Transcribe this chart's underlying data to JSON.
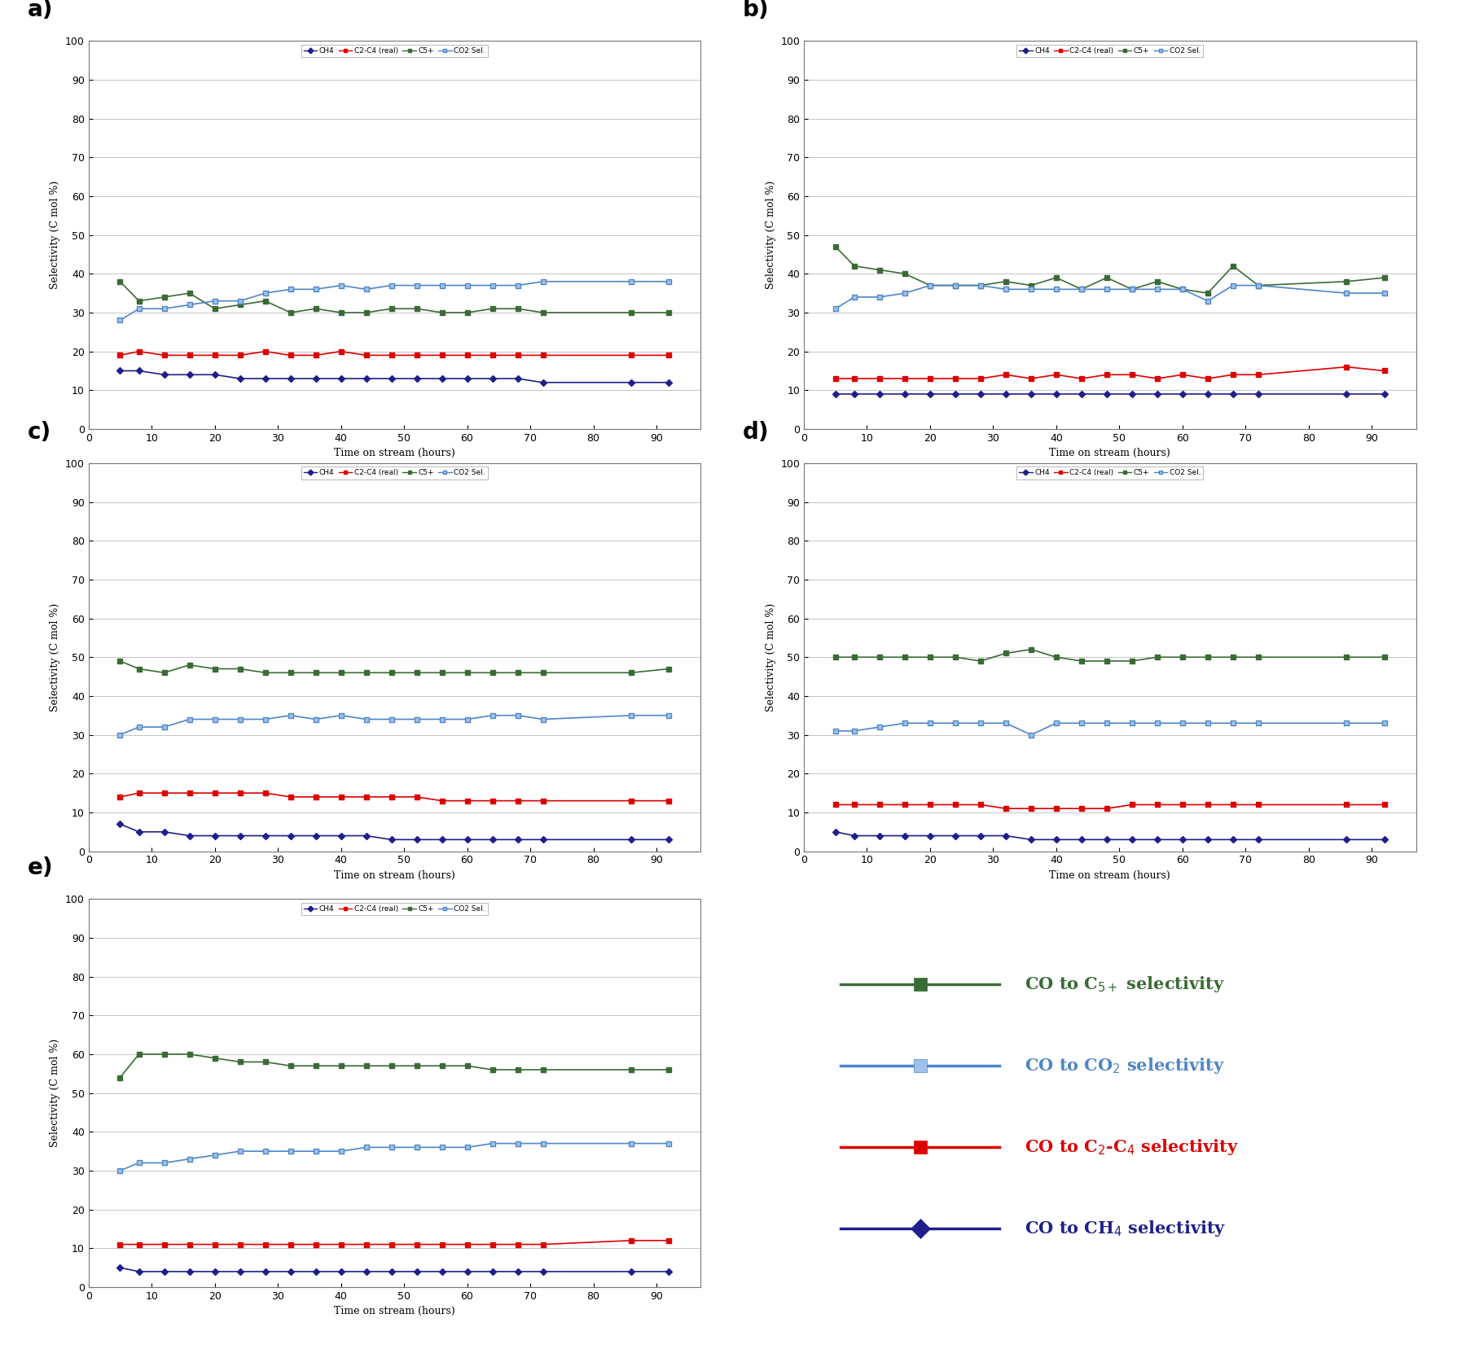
{
  "panels": [
    {
      "label": "a)",
      "CH4": [
        15,
        15,
        14,
        14,
        14,
        13,
        13,
        13,
        13,
        13,
        13,
        13,
        13,
        13,
        13,
        13,
        13,
        12,
        12,
        12
      ],
      "C2C4": [
        19,
        20,
        19,
        19,
        19,
        19,
        20,
        19,
        19,
        20,
        19,
        19,
        19,
        19,
        19,
        19,
        19,
        19,
        19,
        19
      ],
      "C5p": [
        38,
        33,
        34,
        35,
        31,
        32,
        33,
        30,
        31,
        30,
        30,
        31,
        31,
        30,
        30,
        31,
        31,
        30,
        30,
        30
      ],
      "CO2": [
        28,
        31,
        31,
        32,
        33,
        33,
        35,
        36,
        36,
        37,
        36,
        37,
        37,
        37,
        37,
        37,
        37,
        38,
        38,
        38
      ]
    },
    {
      "label": "b)",
      "CH4": [
        9,
        9,
        9,
        9,
        9,
        9,
        9,
        9,
        9,
        9,
        9,
        9,
        9,
        9,
        9,
        9,
        9,
        9,
        9,
        9
      ],
      "C2C4": [
        13,
        13,
        13,
        13,
        13,
        13,
        13,
        14,
        13,
        14,
        13,
        14,
        14,
        13,
        14,
        13,
        14,
        14,
        16,
        15
      ],
      "C5p": [
        47,
        42,
        41,
        40,
        37,
        37,
        37,
        38,
        37,
        39,
        36,
        39,
        36,
        38,
        36,
        35,
        42,
        37,
        38,
        39
      ],
      "CO2": [
        31,
        34,
        34,
        35,
        37,
        37,
        37,
        36,
        36,
        36,
        36,
        36,
        36,
        36,
        36,
        33,
        37,
        37,
        35,
        35
      ]
    },
    {
      "label": "c)",
      "CH4": [
        7,
        5,
        5,
        4,
        4,
        4,
        4,
        4,
        4,
        4,
        4,
        3,
        3,
        3,
        3,
        3,
        3,
        3,
        3,
        3
      ],
      "C2C4": [
        14,
        15,
        15,
        15,
        15,
        15,
        15,
        14,
        14,
        14,
        14,
        14,
        14,
        13,
        13,
        13,
        13,
        13,
        13,
        13
      ],
      "C5p": [
        49,
        47,
        46,
        48,
        47,
        47,
        46,
        46,
        46,
        46,
        46,
        46,
        46,
        46,
        46,
        46,
        46,
        46,
        46,
        47
      ],
      "CO2": [
        30,
        32,
        32,
        34,
        34,
        34,
        34,
        35,
        34,
        35,
        34,
        34,
        34,
        34,
        34,
        35,
        35,
        34,
        35,
        35
      ]
    },
    {
      "label": "d)",
      "CH4": [
        5,
        4,
        4,
        4,
        4,
        4,
        4,
        4,
        3,
        3,
        3,
        3,
        3,
        3,
        3,
        3,
        3,
        3,
        3,
        3
      ],
      "C2C4": [
        12,
        12,
        12,
        12,
        12,
        12,
        12,
        11,
        11,
        11,
        11,
        11,
        12,
        12,
        12,
        12,
        12,
        12,
        12,
        12
      ],
      "C5p": [
        50,
        50,
        50,
        50,
        50,
        50,
        49,
        51,
        52,
        50,
        49,
        49,
        49,
        50,
        50,
        50,
        50,
        50,
        50,
        50
      ],
      "CO2": [
        31,
        31,
        32,
        33,
        33,
        33,
        33,
        33,
        30,
        33,
        33,
        33,
        33,
        33,
        33,
        33,
        33,
        33,
        33,
        33
      ]
    },
    {
      "label": "e)",
      "CH4": [
        5,
        4,
        4,
        4,
        4,
        4,
        4,
        4,
        4,
        4,
        4,
        4,
        4,
        4,
        4,
        4,
        4,
        4,
        4,
        4
      ],
      "C2C4": [
        11,
        11,
        11,
        11,
        11,
        11,
        11,
        11,
        11,
        11,
        11,
        11,
        11,
        11,
        11,
        11,
        11,
        11,
        12,
        12
      ],
      "C5p": [
        54,
        60,
        60,
        60,
        59,
        58,
        58,
        57,
        57,
        57,
        57,
        57,
        57,
        57,
        57,
        56,
        56,
        56,
        56,
        56
      ],
      "CO2": [
        30,
        32,
        32,
        33,
        34,
        35,
        35,
        35,
        35,
        35,
        36,
        36,
        36,
        36,
        36,
        37,
        37,
        37,
        37,
        37
      ]
    }
  ],
  "x_times": [
    5,
    8,
    12,
    16,
    20,
    24,
    28,
    32,
    36,
    40,
    44,
    48,
    52,
    56,
    60,
    64,
    68,
    72,
    86,
    92
  ],
  "colors": {
    "CH4": "#1F1F8B",
    "C2C4": "#DD0000",
    "C5p": "#3A6B35",
    "CO2": "#4E86C8"
  },
  "legend_labels": {
    "CH4": "CH4",
    "C2C4": "C2-C4 (real)",
    "C5p": "C5+",
    "CO2": "CO2 Sel."
  },
  "xlabel": "Time on stream (hours)",
  "ylabel": "Selectivity (C mol %)",
  "xlim": [
    0,
    97
  ],
  "ylim": [
    0,
    100
  ],
  "yticks": [
    0,
    10,
    20,
    30,
    40,
    50,
    60,
    70,
    80,
    90,
    100
  ],
  "xticks": [
    0,
    10,
    20,
    30,
    40,
    50,
    60,
    70,
    80,
    90
  ],
  "legend_entries": [
    {
      "label": "CO to C$_{5+}$ selectivity",
      "color": "#3A6B35",
      "marker": "s",
      "markercolor": "#3A6B35"
    },
    {
      "label": "CO to CO$_2$ selectivity",
      "color": "#4E86C8",
      "marker": "s",
      "markercolor": "#9FC0E8"
    },
    {
      "label": "CO to C$_2$-C$_4$ selectivity",
      "color": "#DD0000",
      "marker": "s",
      "markercolor": "#DD0000"
    },
    {
      "label": "CO to CH$_4$ selectivity",
      "color": "#1F1F8B",
      "marker": "D",
      "markercolor": "#1F1F8B"
    }
  ],
  "fig_bg": "#FFFFFF",
  "axes_bg": "#FFFFFF"
}
